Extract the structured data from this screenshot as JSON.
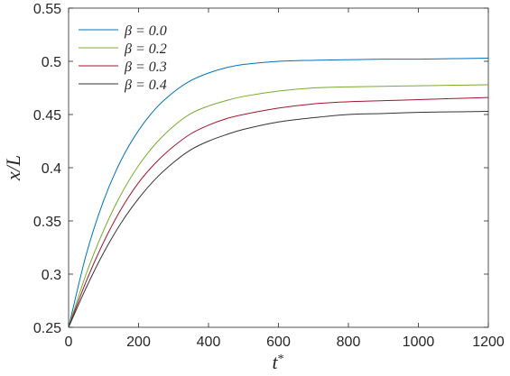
{
  "chart_data": {
    "type": "line",
    "title": "",
    "xlabel": "t*",
    "ylabel": "x/L",
    "xlim": [
      0,
      1200
    ],
    "ylim": [
      0.25,
      0.55
    ],
    "xticks": [
      0,
      200,
      400,
      600,
      800,
      1000,
      1200
    ],
    "yticks": [
      0.25,
      0.3,
      0.35,
      0.4,
      0.45,
      0.5,
      0.55
    ],
    "xtick_labels": [
      "0",
      "200",
      "400",
      "600",
      "800",
      "1000",
      "1200"
    ],
    "ytick_labels": [
      "0.25",
      "0.3",
      "0.35",
      "0.4",
      "0.45",
      "0.5",
      "0.55"
    ],
    "grid": false,
    "legend_position": "top-left",
    "x": [
      0,
      50,
      100,
      150,
      200,
      250,
      300,
      350,
      400,
      450,
      500,
      600,
      700,
      800,
      900,
      1000,
      1100,
      1200
    ],
    "series": [
      {
        "name": "β = 0.0",
        "color": "#0072BD",
        "values": [
          0.25,
          0.318,
          0.369,
          0.407,
          0.435,
          0.456,
          0.471,
          0.482,
          0.489,
          0.494,
          0.497,
          0.5,
          0.501,
          0.5015,
          0.502,
          0.502,
          0.5025,
          0.503
        ]
      },
      {
        "name": "β = 0.2",
        "color": "#77AC30",
        "values": [
          0.25,
          0.3,
          0.341,
          0.375,
          0.402,
          0.423,
          0.439,
          0.451,
          0.458,
          0.463,
          0.467,
          0.472,
          0.475,
          0.476,
          0.4765,
          0.477,
          0.4775,
          0.478
        ]
      },
      {
        "name": "β = 0.3",
        "color": "#A2142F",
        "values": [
          0.25,
          0.293,
          0.33,
          0.361,
          0.386,
          0.405,
          0.42,
          0.432,
          0.44,
          0.446,
          0.45,
          0.456,
          0.46,
          0.462,
          0.463,
          0.464,
          0.465,
          0.466
        ]
      },
      {
        "name": "β = 0.4",
        "color": "#333333",
        "values": [
          0.25,
          0.287,
          0.32,
          0.348,
          0.371,
          0.39,
          0.405,
          0.417,
          0.425,
          0.431,
          0.436,
          0.443,
          0.447,
          0.45,
          0.451,
          0.452,
          0.4525,
          0.453
        ]
      }
    ]
  }
}
